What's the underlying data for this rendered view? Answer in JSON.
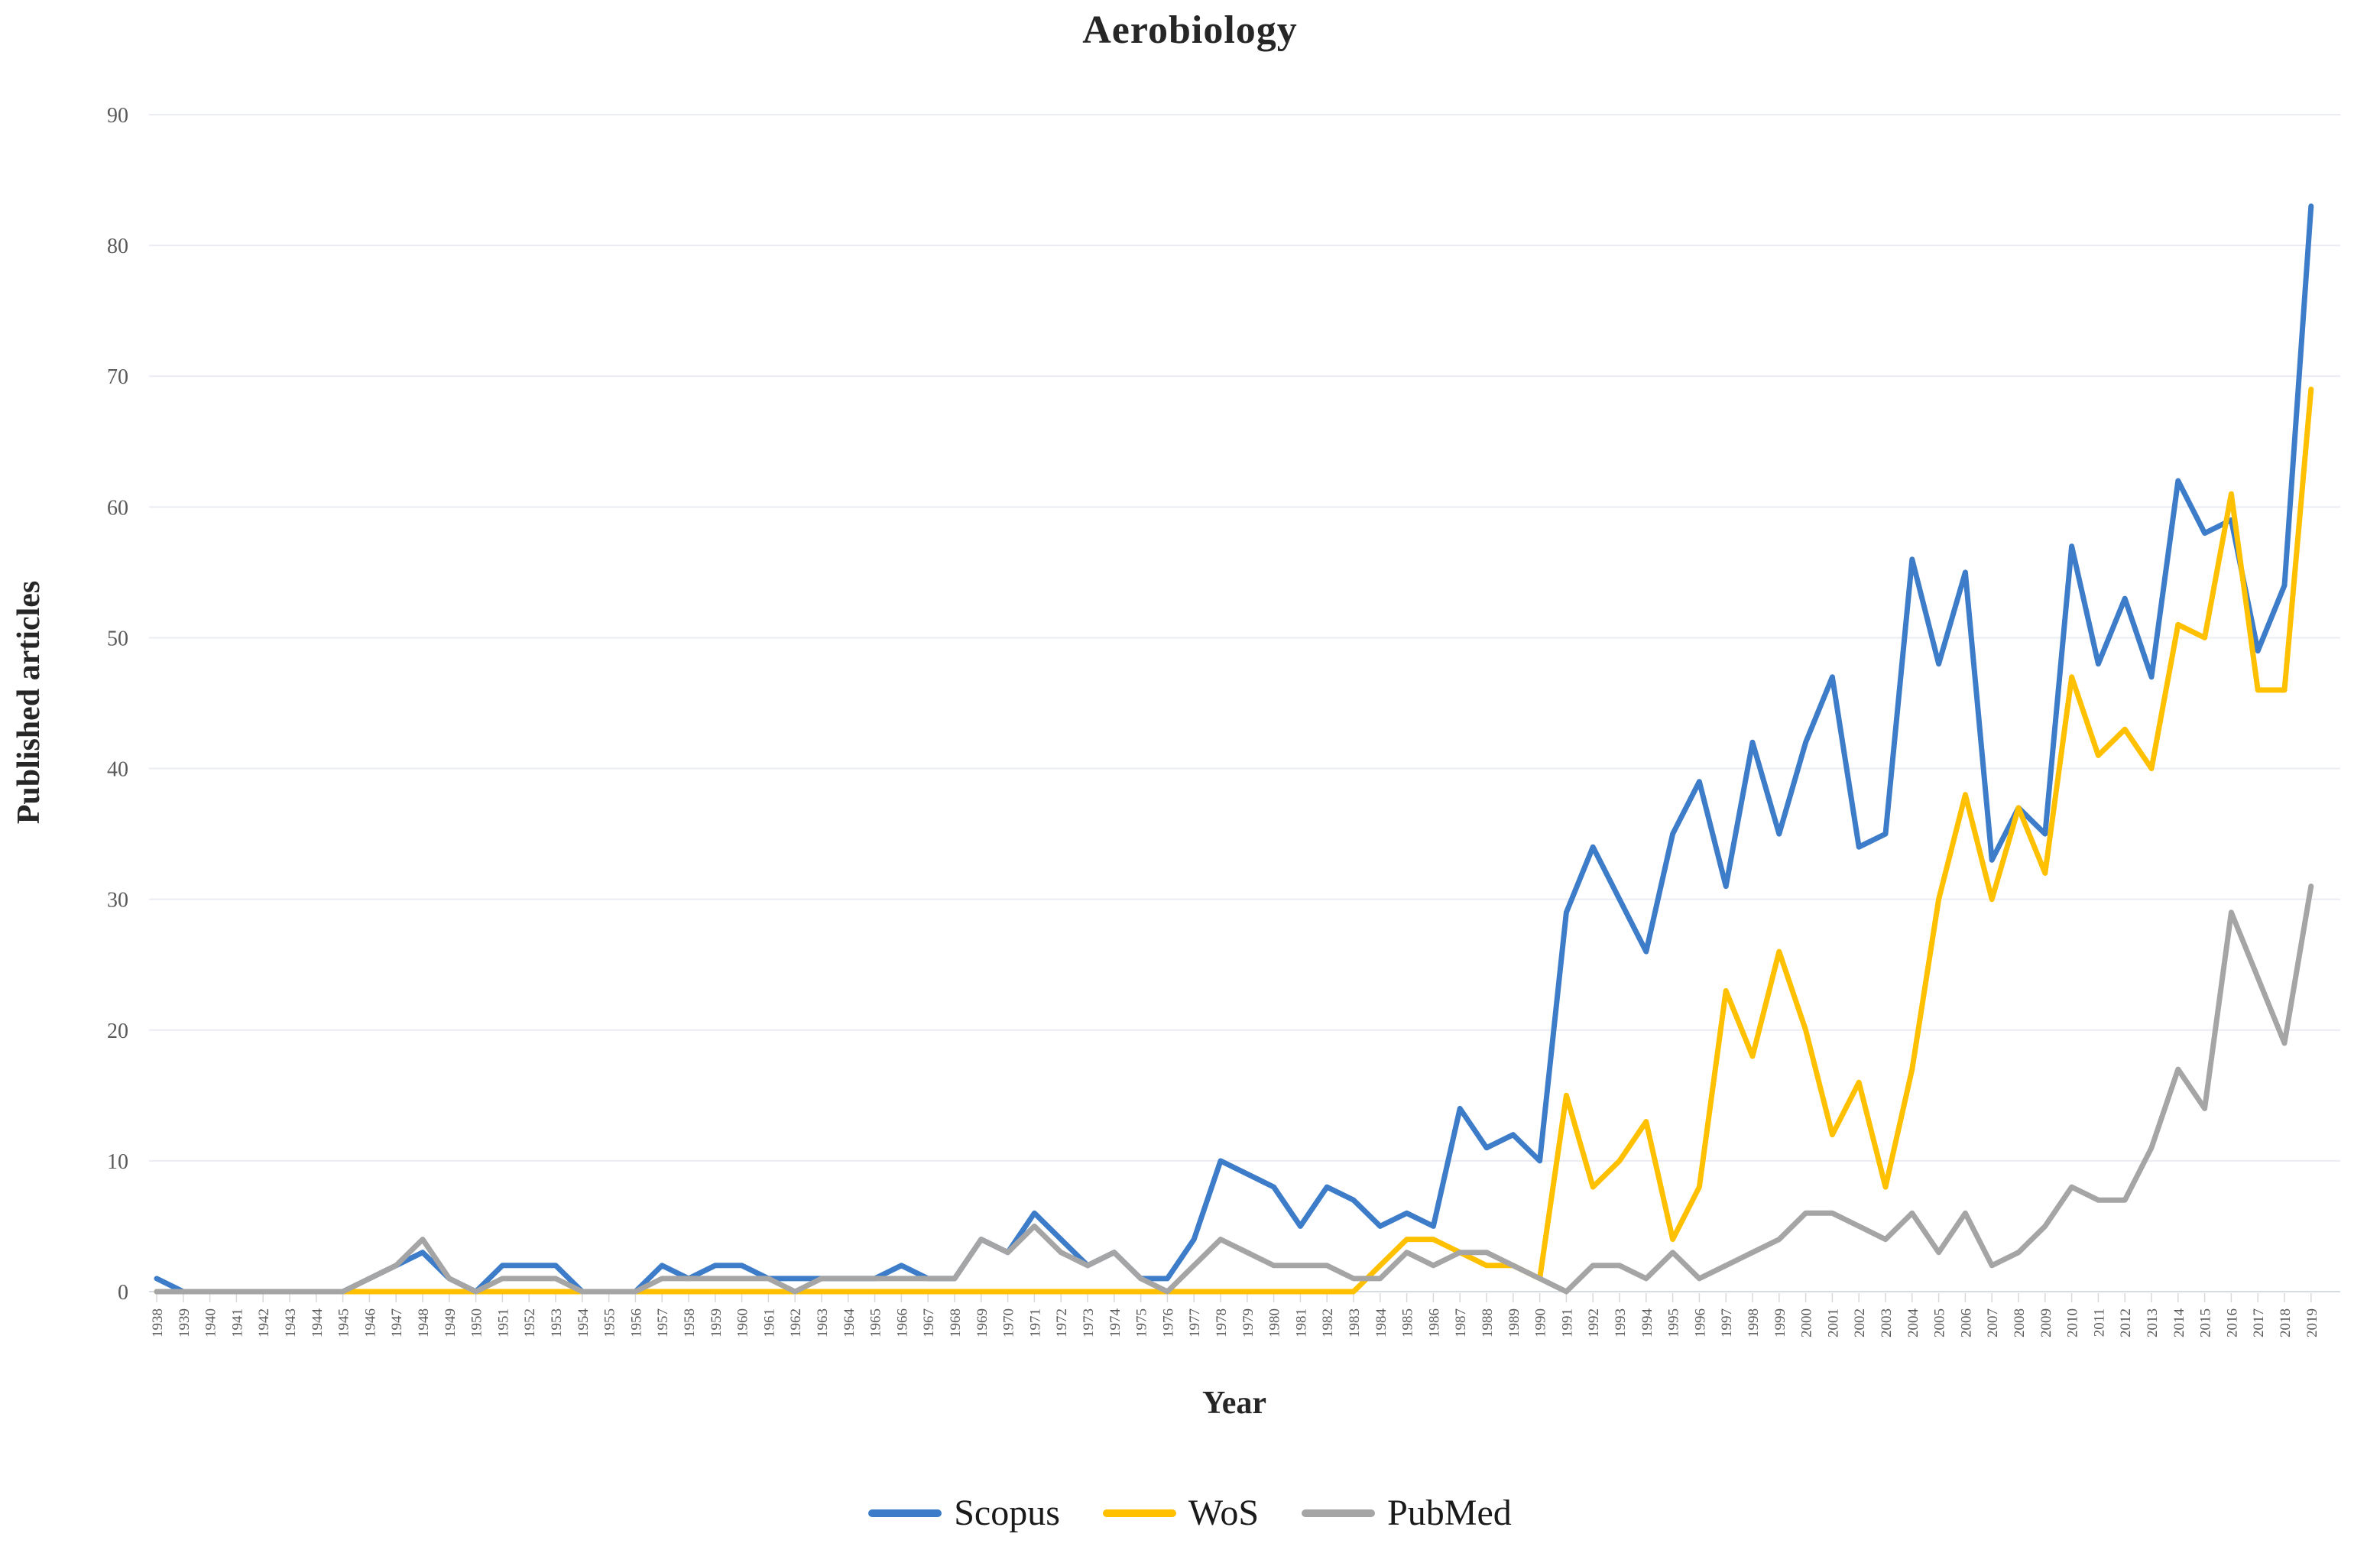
{
  "page": {
    "background": "#ffffff"
  },
  "chart_data": {
    "type": "line",
    "title": "Aerobiology",
    "xlabel": "Year",
    "ylabel": "Published articles",
    "ylim": [
      0,
      90
    ],
    "ytick_step": 10,
    "grid": true,
    "legend_position": "bottom",
    "categories": [
      1938,
      1939,
      1940,
      1941,
      1942,
      1943,
      1944,
      1945,
      1946,
      1947,
      1948,
      1949,
      1950,
      1951,
      1952,
      1953,
      1954,
      1955,
      1956,
      1957,
      1958,
      1959,
      1960,
      1961,
      1962,
      1963,
      1964,
      1965,
      1966,
      1967,
      1968,
      1969,
      1970,
      1971,
      1972,
      1973,
      1974,
      1975,
      1976,
      1977,
      1978,
      1979,
      1980,
      1981,
      1982,
      1983,
      1984,
      1985,
      1986,
      1987,
      1988,
      1989,
      1990,
      1991,
      1992,
      1993,
      1994,
      1995,
      1996,
      1997,
      1998,
      1999,
      2000,
      2001,
      2002,
      2003,
      2004,
      2005,
      2006,
      2007,
      2008,
      2009,
      2010,
      2011,
      2012,
      2013,
      2014,
      2015,
      2016,
      2017,
      2018,
      2019
    ],
    "series": [
      {
        "name": "Scopus",
        "color": "#3D7CC8",
        "values": [
          1,
          0,
          0,
          0,
          0,
          0,
          0,
          0,
          1,
          2,
          3,
          1,
          0,
          2,
          2,
          2,
          0,
          0,
          0,
          2,
          1,
          2,
          2,
          1,
          1,
          1,
          1,
          1,
          2,
          1,
          1,
          4,
          3,
          6,
          4,
          2,
          3,
          1,
          1,
          4,
          10,
          9,
          8,
          5,
          8,
          7,
          5,
          6,
          5,
          14,
          11,
          12,
          10,
          29,
          34,
          30,
          26,
          35,
          39,
          31,
          42,
          35,
          42,
          47,
          34,
          35,
          56,
          48,
          55,
          33,
          37,
          35,
          57,
          48,
          53,
          47,
          62,
          58,
          59,
          49,
          54,
          83
        ]
      },
      {
        "name": "WoS",
        "color": "#FFC000",
        "values": [
          0,
          0,
          0,
          0,
          0,
          0,
          0,
          0,
          0,
          0,
          0,
          0,
          0,
          0,
          0,
          0,
          0,
          0,
          0,
          0,
          0,
          0,
          0,
          0,
          0,
          0,
          0,
          0,
          0,
          0,
          0,
          0,
          0,
          0,
          0,
          0,
          0,
          0,
          0,
          0,
          0,
          0,
          0,
          0,
          0,
          0,
          2,
          4,
          4,
          3,
          2,
          2,
          1,
          15,
          8,
          10,
          13,
          4,
          8,
          23,
          18,
          26,
          20,
          12,
          16,
          8,
          17,
          30,
          38,
          30,
          37,
          32,
          47,
          41,
          43,
          40,
          51,
          50,
          61,
          46,
          46,
          69
        ]
      },
      {
        "name": "PubMed",
        "color": "#A5A5A5",
        "values": [
          0,
          0,
          0,
          0,
          0,
          0,
          0,
          0,
          1,
          2,
          4,
          1,
          0,
          1,
          1,
          1,
          0,
          0,
          0,
          1,
          1,
          1,
          1,
          1,
          0,
          1,
          1,
          1,
          1,
          1,
          1,
          4,
          3,
          5,
          3,
          2,
          3,
          1,
          0,
          2,
          4,
          3,
          2,
          2,
          2,
          1,
          1,
          3,
          2,
          3,
          3,
          2,
          1,
          0,
          2,
          2,
          1,
          3,
          1,
          2,
          3,
          4,
          6,
          6,
          5,
          4,
          6,
          3,
          6,
          2,
          3,
          5,
          8,
          7,
          7,
          11,
          17,
          14,
          29,
          24,
          19,
          31
        ]
      }
    ],
    "colors": {
      "gridline": "#E9ECF2",
      "baseline": "#D7DCE4",
      "tick": "#D9D9D9",
      "axis_text": "#595959",
      "title_text": "#262626"
    }
  }
}
